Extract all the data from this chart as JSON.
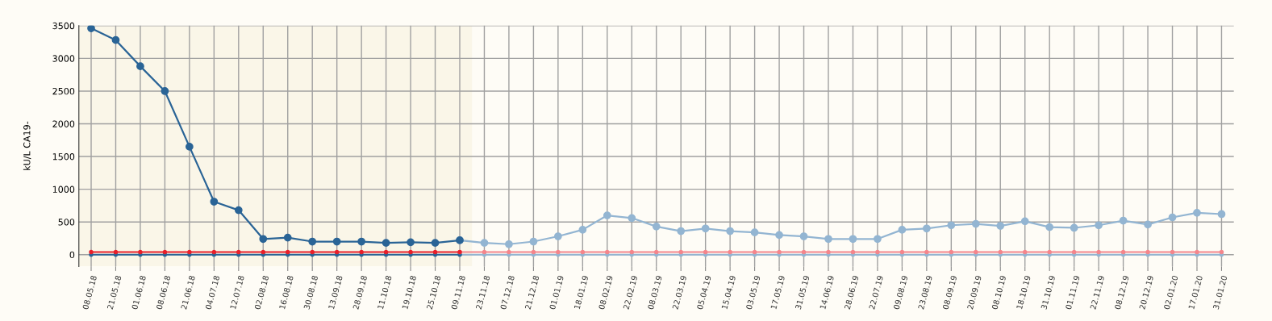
{
  "chart_data": {
    "type": "line",
    "ylabel": "kU/L CA19-",
    "categories": [
      "08.05.18",
      "21.05.18",
      "01.06.18",
      "08.06.18",
      "21.06.18",
      "04.07.18",
      "12.07.18",
      "02.08.18",
      "16.08.18",
      "30.08.18",
      "13.09.18",
      "28.09.18",
      "11.10.18",
      "19.10.18",
      "25.10.18",
      "09.11.18",
      "23.11.18",
      "07.12.18",
      "21.12.18",
      "01.01.19",
      "18.01.19",
      "08.02.19",
      "22.02.19",
      "08.03.19",
      "22.03.19",
      "05.04.19",
      "15.04.19",
      "03.05.19",
      "17.05.19",
      "31.05.19",
      "14.06.19",
      "28.06.19",
      "22.07.19",
      "09.08.19",
      "23.08.19",
      "08.09.19",
      "20.09.19",
      "08.10.19",
      "18.10.19",
      "31.10.19",
      "01.11.19",
      "22.11.19",
      "08.12.19",
      "20.12.19",
      "02.01.20",
      "17.01.20",
      "31.01.20"
    ],
    "series": [
      {
        "color": "#2a6496",
        "values": [
          3460,
          3280,
          2880,
          2500,
          1650,
          810,
          680,
          240,
          260,
          200,
          200,
          200,
          180,
          190,
          180,
          220,
          null,
          null,
          null,
          null,
          null,
          null,
          null,
          null,
          null,
          null,
          null,
          null,
          null,
          null,
          null,
          null,
          null,
          null,
          null,
          null,
          null,
          null,
          null,
          null,
          null,
          null,
          null,
          null,
          null,
          null,
          null
        ]
      },
      {
        "color": "#93b5d2",
        "values": [
          null,
          null,
          null,
          null,
          null,
          null,
          null,
          null,
          null,
          null,
          null,
          null,
          null,
          null,
          null,
          220,
          180,
          160,
          200,
          280,
          380,
          600,
          560,
          430,
          360,
          400,
          360,
          340,
          300,
          280,
          240,
          240,
          240,
          380,
          400,
          450,
          470,
          440,
          510,
          420,
          410,
          450,
          520,
          460,
          570,
          640,
          620
        ]
      },
      {
        "color": "#e8202a",
        "values": [
          40,
          40,
          40,
          40,
          40,
          40,
          40,
          40,
          40,
          40,
          40,
          40,
          40,
          40,
          40,
          40,
          null,
          null,
          null,
          null,
          null,
          null,
          null,
          null,
          null,
          null,
          null,
          null,
          null,
          null,
          null,
          null,
          null,
          null,
          null,
          null,
          null,
          null,
          null,
          null,
          null,
          null,
          null,
          null,
          null,
          null,
          null
        ]
      },
      {
        "color": "#f4868c",
        "values": [
          null,
          null,
          null,
          null,
          null,
          null,
          null,
          null,
          null,
          null,
          null,
          null,
          null,
          null,
          null,
          40,
          40,
          40,
          40,
          40,
          40,
          40,
          40,
          40,
          40,
          40,
          40,
          40,
          40,
          40,
          40,
          40,
          40,
          40,
          40,
          40,
          40,
          40,
          40,
          40,
          40,
          40,
          40,
          40,
          40,
          40,
          40
        ]
      },
      {
        "color": "#2a6496",
        "values": [
          0,
          0,
          0,
          0,
          0,
          0,
          0,
          0,
          0,
          0,
          0,
          0,
          0,
          0,
          0,
          0,
          null,
          null,
          null,
          null,
          null,
          null,
          null,
          null,
          null,
          null,
          null,
          null,
          null,
          null,
          null,
          null,
          null,
          null,
          null,
          null,
          null,
          null,
          null,
          null,
          null,
          null,
          null,
          null,
          null,
          null,
          null
        ]
      },
      {
        "color": "#93b5d2",
        "values": [
          null,
          null,
          null,
          null,
          null,
          null,
          null,
          null,
          null,
          null,
          null,
          null,
          null,
          null,
          null,
          0,
          0,
          0,
          0,
          0,
          0,
          0,
          0,
          0,
          0,
          0,
          0,
          0,
          0,
          0,
          0,
          0,
          0,
          0,
          0,
          0,
          0,
          0,
          0,
          0,
          0,
          0,
          0,
          0,
          0,
          0,
          0
        ]
      }
    ],
    "bands": [
      {
        "axis": "x",
        "from": "08.05.18",
        "to": "09.11.18",
        "color": "#faf6e8"
      }
    ],
    "ylim": [
      -180,
      3500
    ],
    "yticks": [
      0,
      500,
      1000,
      1500,
      2000,
      2500,
      3000,
      3500
    ],
    "grid": true,
    "marker": "circle",
    "line_style": "solid"
  }
}
